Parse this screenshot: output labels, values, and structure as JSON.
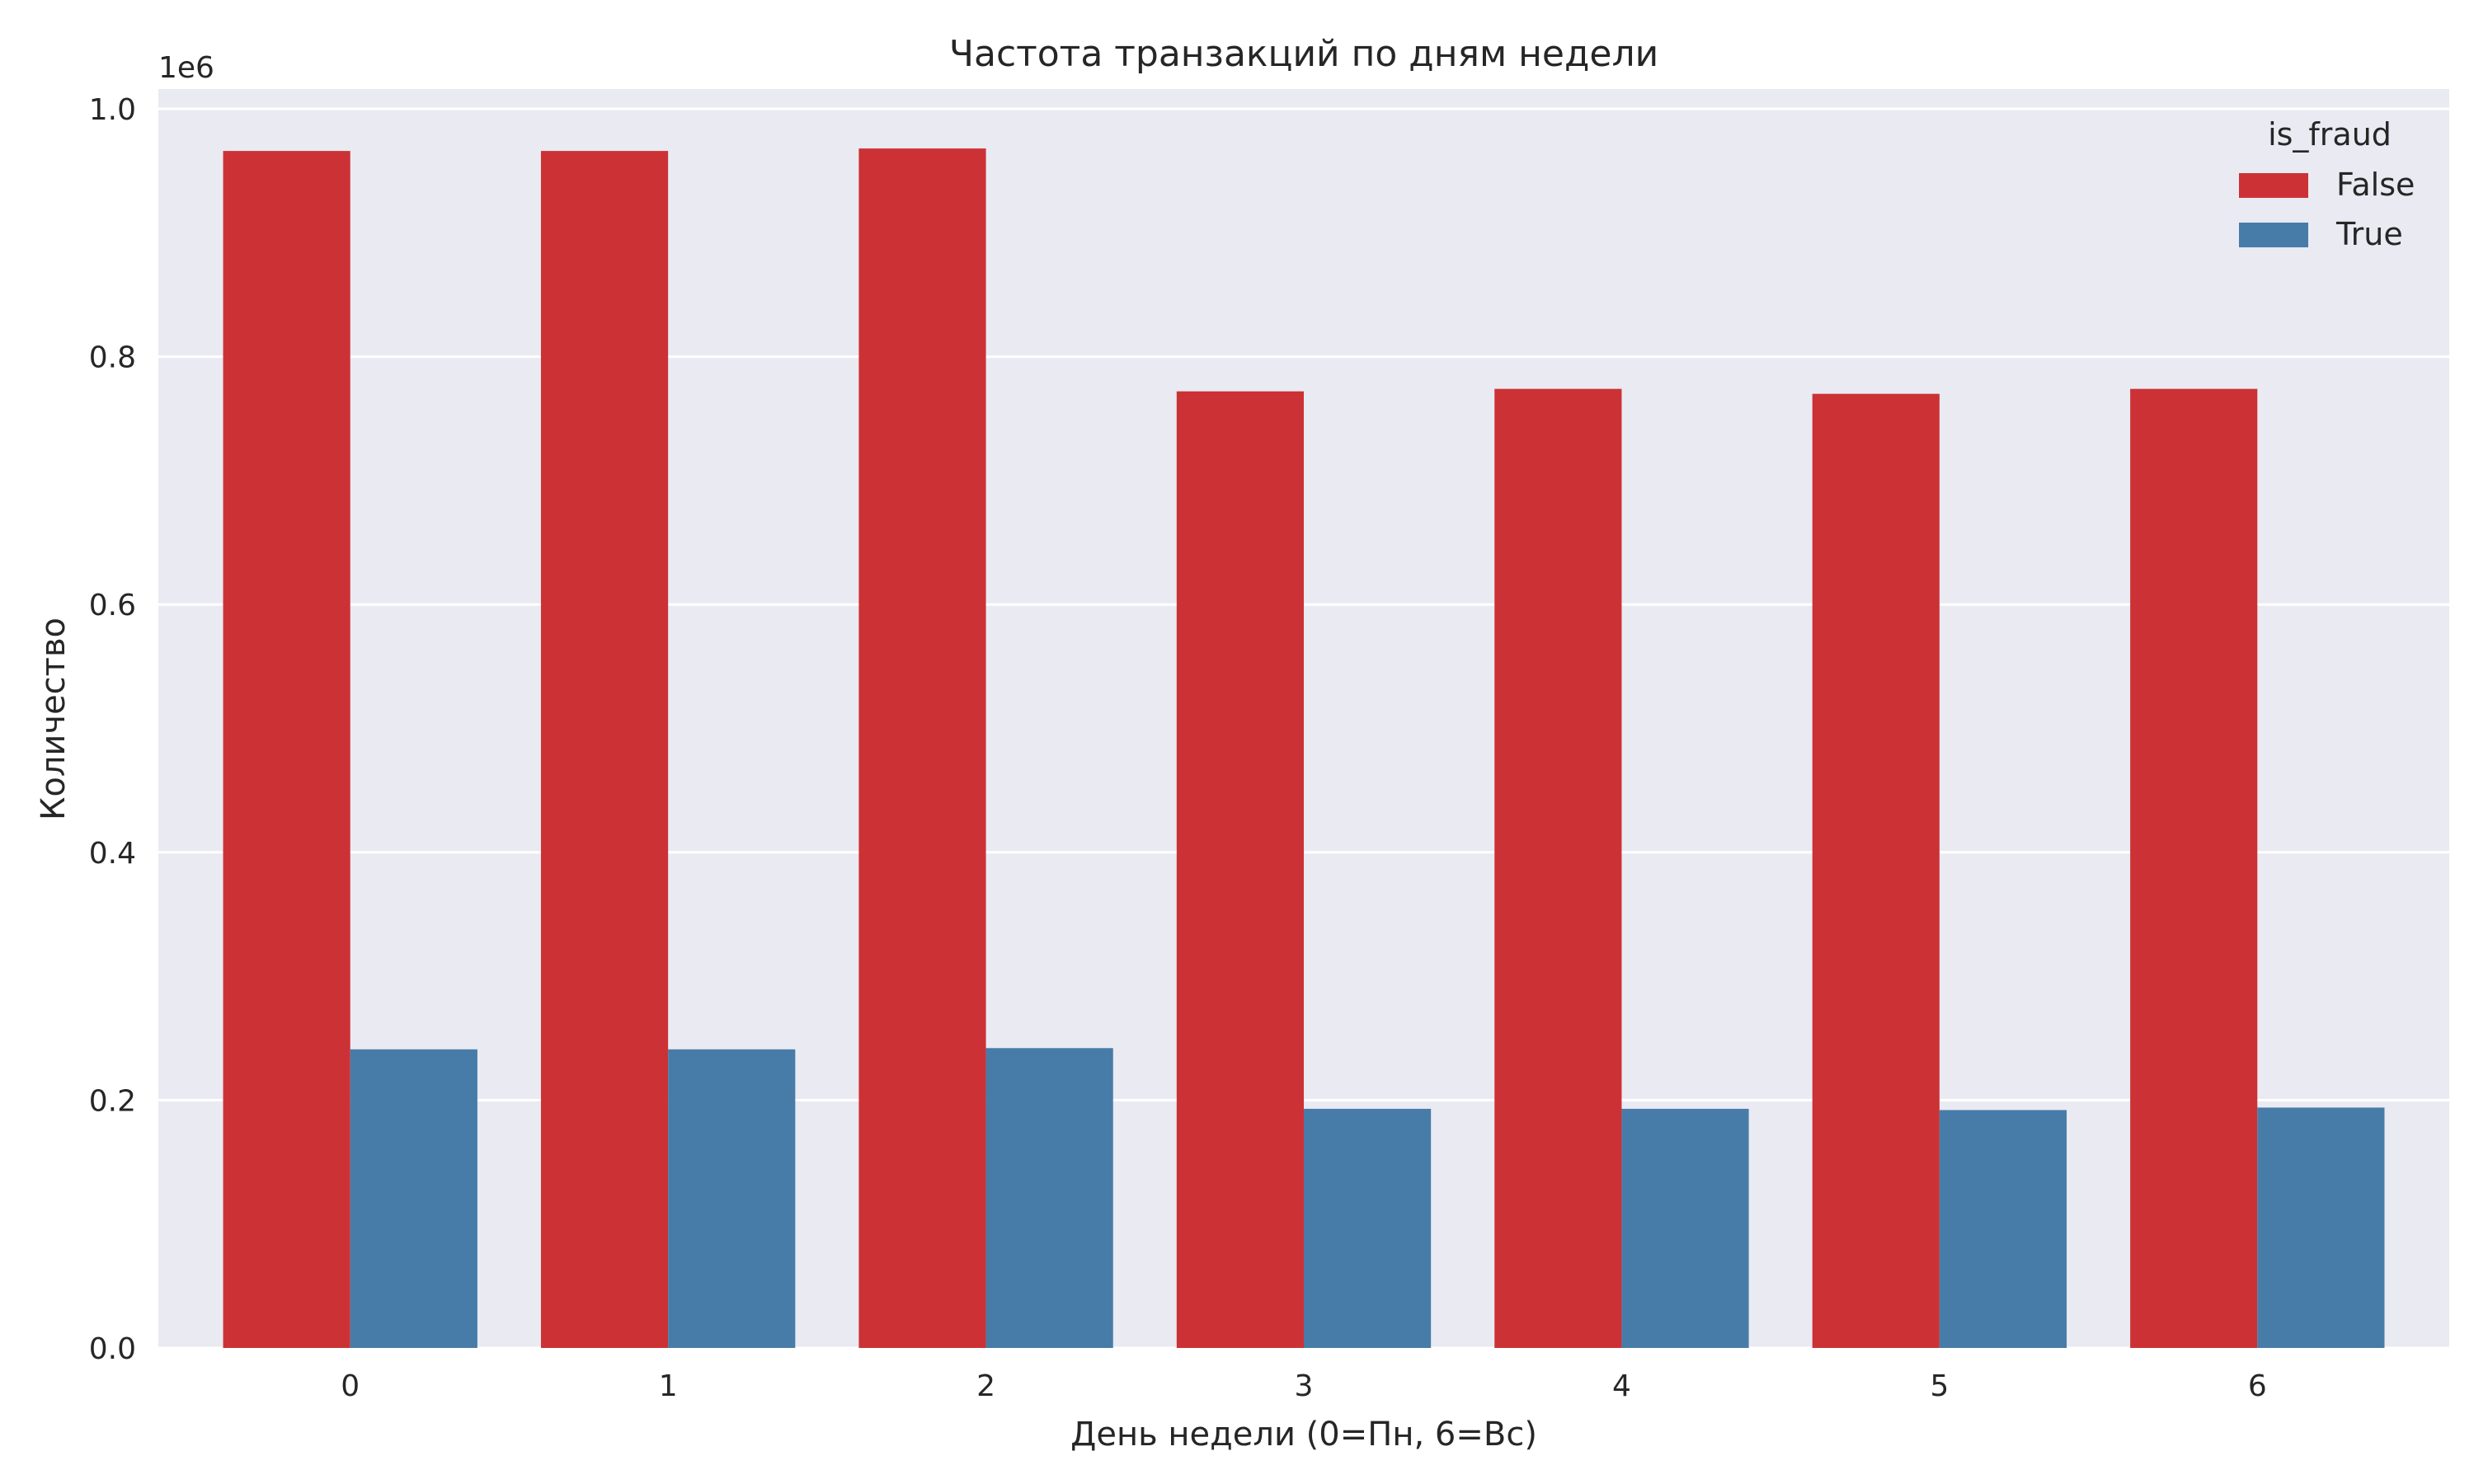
{
  "chart_data": {
    "type": "bar",
    "title": "Частота транзакций по дням недели",
    "xlabel": "День недели (0=Пн, 6=Вс)",
    "ylabel": "Количество",
    "y_offset_label": "1e6",
    "categories": [
      "0",
      "1",
      "2",
      "3",
      "4",
      "5",
      "6"
    ],
    "ylim": [
      0,
      1.0
    ],
    "yticks": [
      "0.0",
      "0.2",
      "0.4",
      "0.6",
      "0.8",
      "1.0"
    ],
    "grid": true,
    "legend": {
      "title": "is_fraud",
      "placement": "top-right",
      "entries": [
        "False",
        "True"
      ]
    },
    "series": [
      {
        "name": "False",
        "color": "#cc3235",
        "values": [
          0.966,
          0.966,
          0.968,
          0.772,
          0.774,
          0.77,
          0.774
        ]
      },
      {
        "name": "True",
        "color": "#477ca8",
        "values": [
          0.241,
          0.241,
          0.242,
          0.193,
          0.193,
          0.192,
          0.194
        ]
      }
    ],
    "background": "#eaeaf2",
    "grid_color": "#ffffff"
  }
}
